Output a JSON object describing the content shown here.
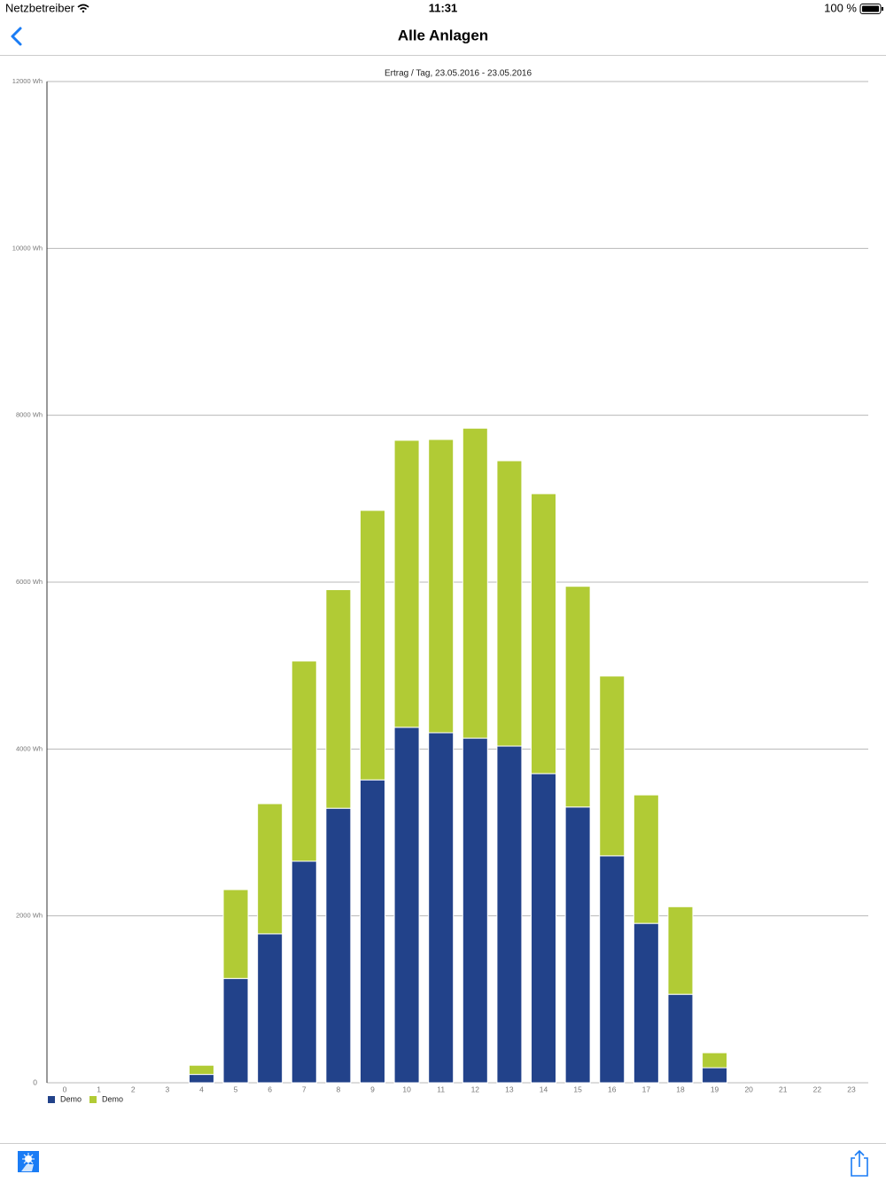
{
  "status_bar": {
    "carrier": "Netzbetreiber",
    "time": "11:31",
    "battery": "100 %"
  },
  "nav": {
    "title": "Alle Anlagen"
  },
  "chart_data": {
    "type": "stacked_bar",
    "title": "Ertrag / Tag, 23.05.2016 - 23.05.2016",
    "categories": [
      "0",
      "1",
      "2",
      "3",
      "4",
      "5",
      "6",
      "7",
      "8",
      "9",
      "10",
      "11",
      "12",
      "13",
      "14",
      "15",
      "16",
      "17",
      "18",
      "19",
      "20",
      "21",
      "22",
      "23"
    ],
    "series": [
      {
        "name": "Demo",
        "color": "#22428a",
        "values": [
          0,
          0,
          0,
          0,
          100,
          1250,
          1785,
          2655,
          3290,
          3630,
          4260,
          4195,
          4130,
          4035,
          3705,
          3305,
          2720,
          1910,
          1060,
          180,
          0,
          0,
          0,
          0
        ]
      },
      {
        "name": "Demo",
        "color": "#b1cb35",
        "values": [
          0,
          0,
          0,
          0,
          110,
          1065,
          1560,
          2400,
          2620,
          3230,
          3440,
          3515,
          3715,
          3420,
          3355,
          2645,
          2155,
          1540,
          1050,
          180,
          0,
          0,
          0,
          0
        ]
      }
    ],
    "ylim": [
      0,
      12000
    ],
    "yticks": [
      0,
      {
        "value": 2000,
        "label": "2000 Wh"
      },
      {
        "value": 4000,
        "label": "4000 Wh"
      },
      {
        "value": 6000,
        "label": "6000 Wh"
      },
      {
        "value": 8000,
        "label": "8000 Wh"
      },
      {
        "value": 10000,
        "label": "10000 Wh"
      },
      {
        "value": 12000,
        "label": "12000 Wh"
      }
    ],
    "grid": true,
    "legend": "bottom-left"
  }
}
